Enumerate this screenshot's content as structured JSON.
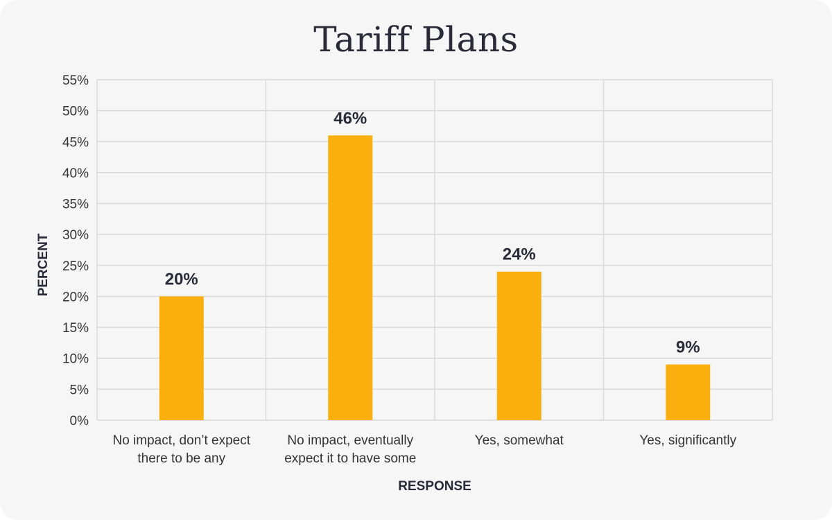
{
  "chart_data": {
    "type": "bar",
    "title": "Tariff Plans",
    "xlabel": "RESPONSE",
    "ylabel": "PERCENT",
    "categories": [
      [
        "No impact, don’t expect",
        "there to be any"
      ],
      [
        "No impact, eventually",
        "expect it to have some"
      ],
      [
        "Yes, somewhat"
      ],
      [
        "Yes, significantly"
      ]
    ],
    "values": [
      20,
      46,
      24,
      9
    ],
    "data_labels": [
      "20%",
      "46%",
      "24%",
      "9%"
    ],
    "ylim": [
      0,
      55
    ],
    "yticks": [
      "0%",
      "5%",
      "10%",
      "15%",
      "20%",
      "25%",
      "30%",
      "35%",
      "40%",
      "45%",
      "50%",
      "55%"
    ],
    "grid": true,
    "bar_color": "#f9b00f",
    "grid_color": "#d9d9d9"
  }
}
